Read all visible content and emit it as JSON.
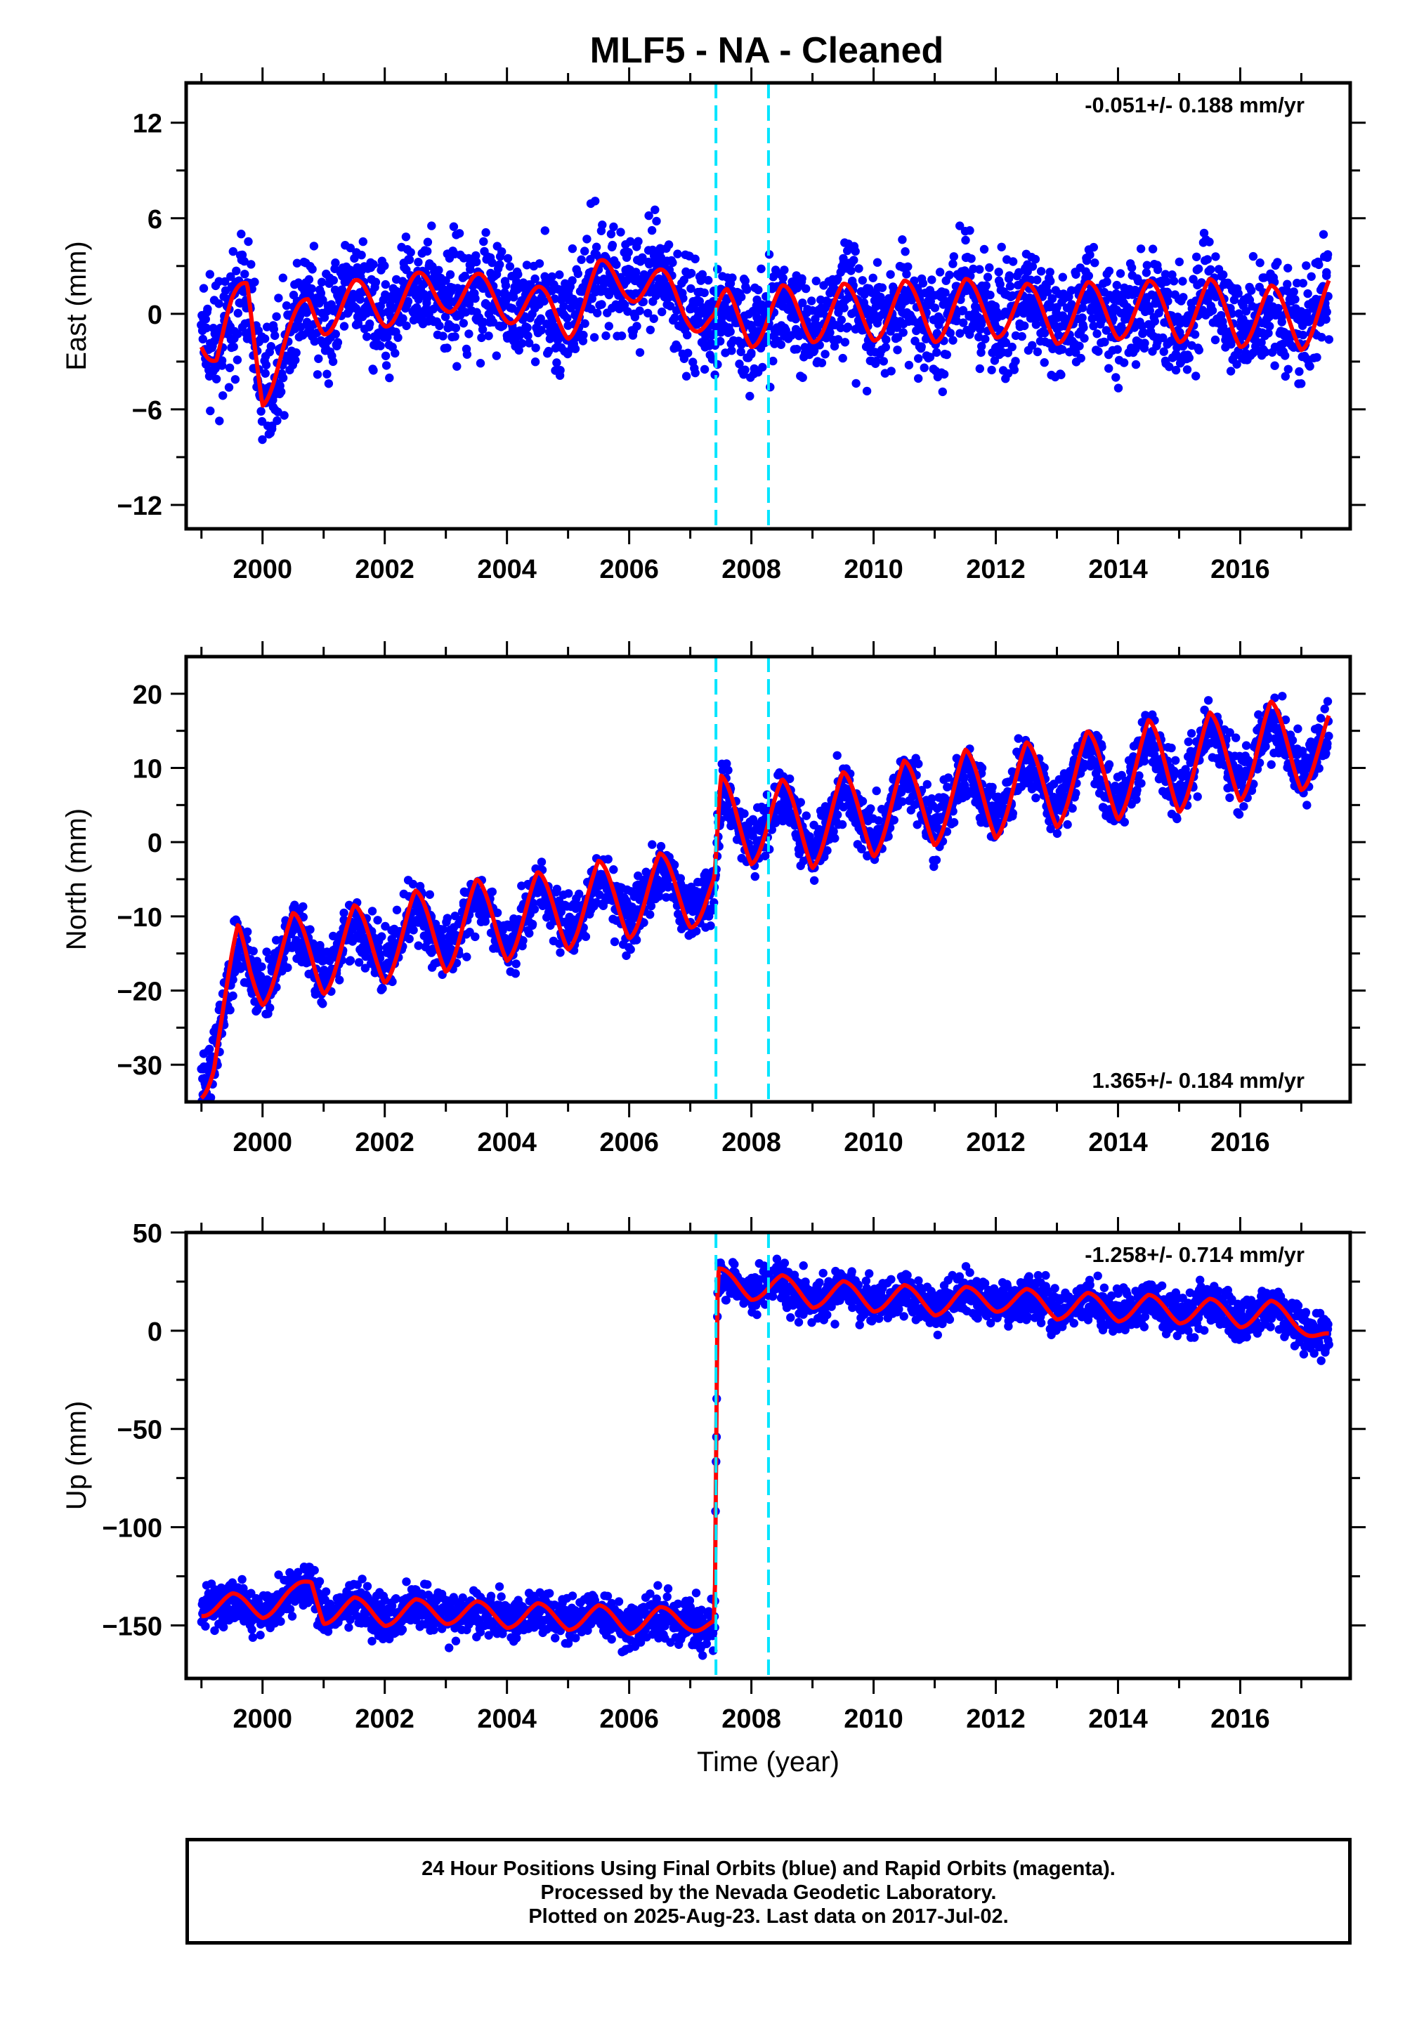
{
  "page": {
    "title": "MLF5  - NA - Cleaned",
    "footer_lines": [
      "24 Hour Positions Using Final Orbits (blue) and Rapid Orbits (magenta).",
      "Processed by the Nevada Geodetic Laboratory.",
      "Plotted on 2025-Aug-23. Last data on 2017-Jul-02."
    ],
    "colors": {
      "data_points": "#0000ff",
      "model_curve": "#ff0000",
      "step_lines": "#00e5ff",
      "axes": "#000000"
    }
  },
  "chart_data": [
    {
      "type": "scatter",
      "ylabel": "East (mm)",
      "xlabel": "",
      "rate_label": "-0.051+/- 0.188 mm/yr",
      "rate_label_position": "top-right",
      "xlim": [
        1998.75,
        2017.8
      ],
      "ylim": [
        -13.5,
        14.5
      ],
      "xticks": [
        2000,
        2002,
        2004,
        2006,
        2008,
        2010,
        2012,
        2014,
        2016
      ],
      "yticks": [
        -12,
        -6,
        0,
        6,
        12
      ],
      "step_lines_x": [
        2007.42,
        2008.28
      ],
      "series": [
        {
          "role": "daily positions",
          "x": [
            1999.0,
            1999.25,
            1999.5,
            1999.75,
            2000.0,
            2000.25,
            2000.5,
            2000.75,
            2001.0,
            2001.5,
            2002.0,
            2002.5,
            2003.0,
            2003.5,
            2004.0,
            2004.5,
            2005.0,
            2005.5,
            2006.0,
            2006.5,
            2007.0,
            2007.4,
            2007.6,
            2008.0,
            2008.5,
            2009.0,
            2009.5,
            2010.0,
            2010.5,
            2011.0,
            2011.5,
            2012.0,
            2012.5,
            2013.0,
            2013.5,
            2014.0,
            2014.5,
            2015.0,
            2015.5,
            2016.0,
            2016.5,
            2017.0,
            2017.45
          ],
          "y": [
            -0.8,
            -2.5,
            -0.3,
            1.5,
            -4.5,
            -3.0,
            -1.5,
            0.5,
            0.0,
            0.8,
            0.5,
            1.2,
            1.5,
            1.2,
            0.8,
            0.4,
            -0.3,
            2.0,
            2.2,
            1.5,
            0.5,
            -0.8,
            0.3,
            -0.8,
            0.5,
            -0.5,
            0.6,
            -0.4,
            0.8,
            -0.5,
            0.9,
            -0.2,
            0.6,
            -0.6,
            0.7,
            -0.3,
            0.8,
            -0.5,
            0.9,
            -0.8,
            0.5,
            -1.0,
            1.0
          ]
        },
        {
          "role": "model fit",
          "annual_amplitude": 1.5,
          "offsets": [
            {
              "x": 2007.42,
              "delta": 0.0
            }
          ]
        }
      ]
    },
    {
      "type": "scatter",
      "ylabel": "North (mm)",
      "xlabel": "",
      "rate_label": "1.365+/- 0.184 mm/yr",
      "rate_label_position": "bottom-right",
      "xlim": [
        1998.75,
        2017.8
      ],
      "ylim": [
        -35.0,
        25.0
      ],
      "xticks": [
        2000,
        2002,
        2004,
        2006,
        2008,
        2010,
        2012,
        2014,
        2016
      ],
      "yticks": [
        -30,
        -20,
        -10,
        0,
        10,
        20
      ],
      "step_lines_x": [
        2007.42,
        2008.28
      ],
      "series": [
        {
          "role": "daily positions",
          "x": [
            1999.0,
            1999.2,
            1999.4,
            1999.6,
            1999.8,
            2000.0,
            2000.5,
            2001.0,
            2001.5,
            2002.0,
            2002.5,
            2003.0,
            2003.5,
            2004.0,
            2004.5,
            2005.0,
            2005.5,
            2006.0,
            2006.5,
            2007.0,
            2007.4,
            2007.5,
            2008.0,
            2008.5,
            2009.0,
            2009.5,
            2010.0,
            2010.5,
            2011.0,
            2011.5,
            2012.0,
            2012.5,
            2013.0,
            2013.5,
            2014.0,
            2014.5,
            2015.0,
            2015.5,
            2016.0,
            2016.5,
            2017.0,
            2017.45
          ],
          "y": [
            -31.5,
            -29.0,
            -22.0,
            -14.0,
            -17.5,
            -19.0,
            -12.5,
            -17.5,
            -11.5,
            -16.0,
            -9.5,
            -14.5,
            -8.0,
            -13.0,
            -7.0,
            -11.5,
            -5.5,
            -10.0,
            -4.5,
            -8.5,
            -6.5,
            6.0,
            0.0,
            5.5,
            -0.5,
            6.5,
            1.0,
            8.0,
            2.5,
            9.5,
            3.5,
            10.5,
            5.0,
            12.0,
            6.0,
            13.5,
            7.0,
            14.5,
            8.5,
            16.0,
            10.0,
            14.5
          ]
        },
        {
          "role": "model fit",
          "annual_amplitude": 3.5,
          "offsets": [
            {
              "x": 2007.42,
              "delta": 6.5
            }
          ]
        }
      ]
    },
    {
      "type": "scatter",
      "ylabel": "Up (mm)",
      "xlabel": "Time (year)",
      "rate_label": "-1.258+/- 0.714 mm/yr",
      "rate_label_position": "top-right",
      "xlim": [
        1998.75,
        2017.8
      ],
      "ylim": [
        -177.0,
        50.0
      ],
      "xticks": [
        2000,
        2002,
        2004,
        2006,
        2008,
        2010,
        2012,
        2014,
        2016
      ],
      "yticks": [
        -150,
        -100,
        -50,
        0,
        50
      ],
      "step_lines_x": [
        2007.42,
        2008.28
      ],
      "series": [
        {
          "role": "daily positions",
          "x": [
            1999.0,
            1999.5,
            2000.0,
            2000.5,
            2000.8,
            2001.0,
            2001.5,
            2002.0,
            2002.5,
            2003.0,
            2003.5,
            2004.0,
            2004.5,
            2005.0,
            2005.5,
            2006.0,
            2006.5,
            2007.0,
            2007.4,
            2007.45,
            2008.0,
            2008.5,
            2009.0,
            2009.5,
            2010.0,
            2010.5,
            2011.0,
            2011.5,
            2012.0,
            2012.5,
            2013.0,
            2013.5,
            2014.0,
            2014.5,
            2015.0,
            2015.5,
            2016.0,
            2016.5,
            2017.0,
            2017.45
          ],
          "y": [
            -141,
            -138,
            -142,
            -135,
            -128,
            -145,
            -140,
            -146,
            -141,
            -145,
            -142,
            -147,
            -143,
            -148,
            -144,
            -150,
            -145,
            -148,
            -150,
            28,
            20,
            24,
            16,
            21,
            14,
            19,
            12,
            18,
            14,
            17,
            10,
            15,
            9,
            14,
            8,
            12,
            6,
            11,
            4,
            -5
          ]
        },
        {
          "role": "model fit",
          "annual_amplitude": 5.0,
          "offsets": [
            {
              "x": 2007.42,
              "delta": 176.0
            }
          ]
        }
      ]
    }
  ]
}
